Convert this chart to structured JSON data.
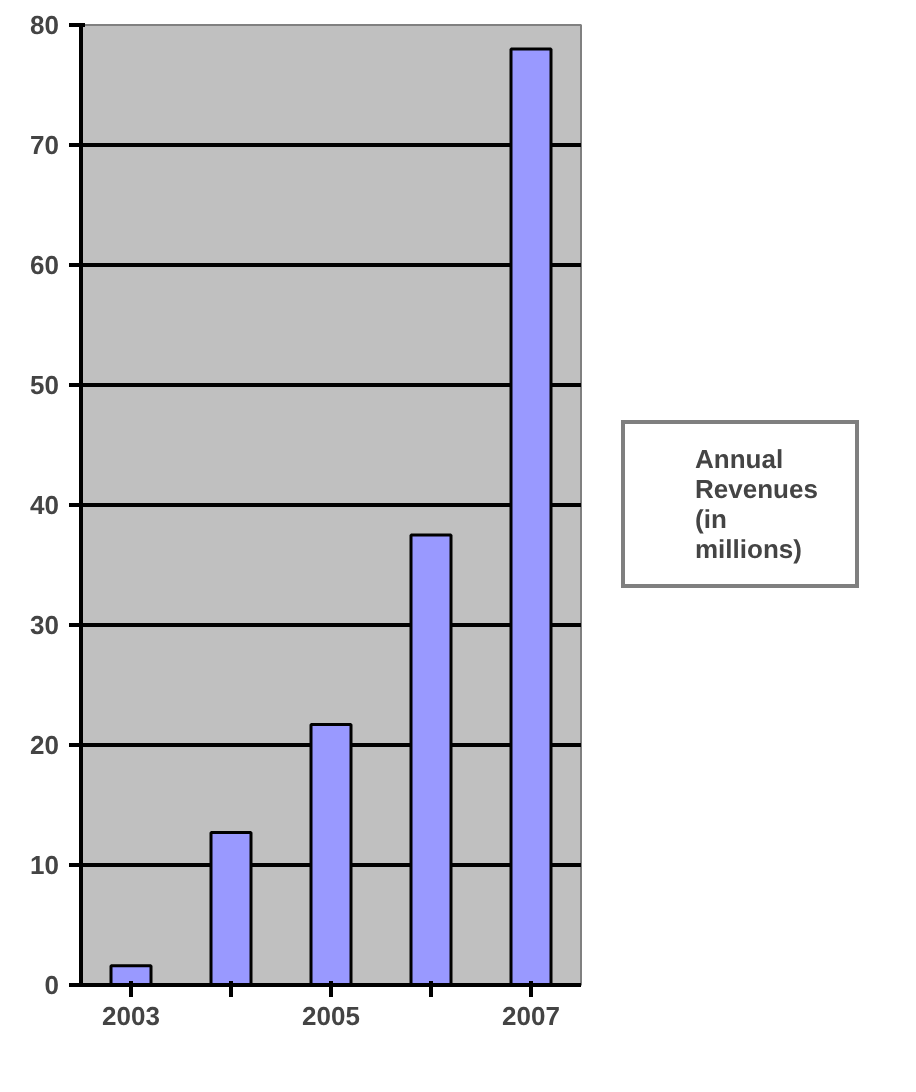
{
  "chart_data": {
    "type": "bar",
    "categories": [
      "2003",
      null,
      "2005",
      null,
      "2007"
    ],
    "series": [
      {
        "name": "Annual Revenues (in millions)",
        "color": "#9999ff",
        "values": [
          1.6,
          12.7,
          21.7,
          37.5,
          78
        ]
      }
    ],
    "ylim": [
      0,
      80
    ],
    "yticks": [
      0,
      10,
      20,
      30,
      40,
      50,
      60,
      70,
      80
    ],
    "grid": "y",
    "legend": "right"
  }
}
